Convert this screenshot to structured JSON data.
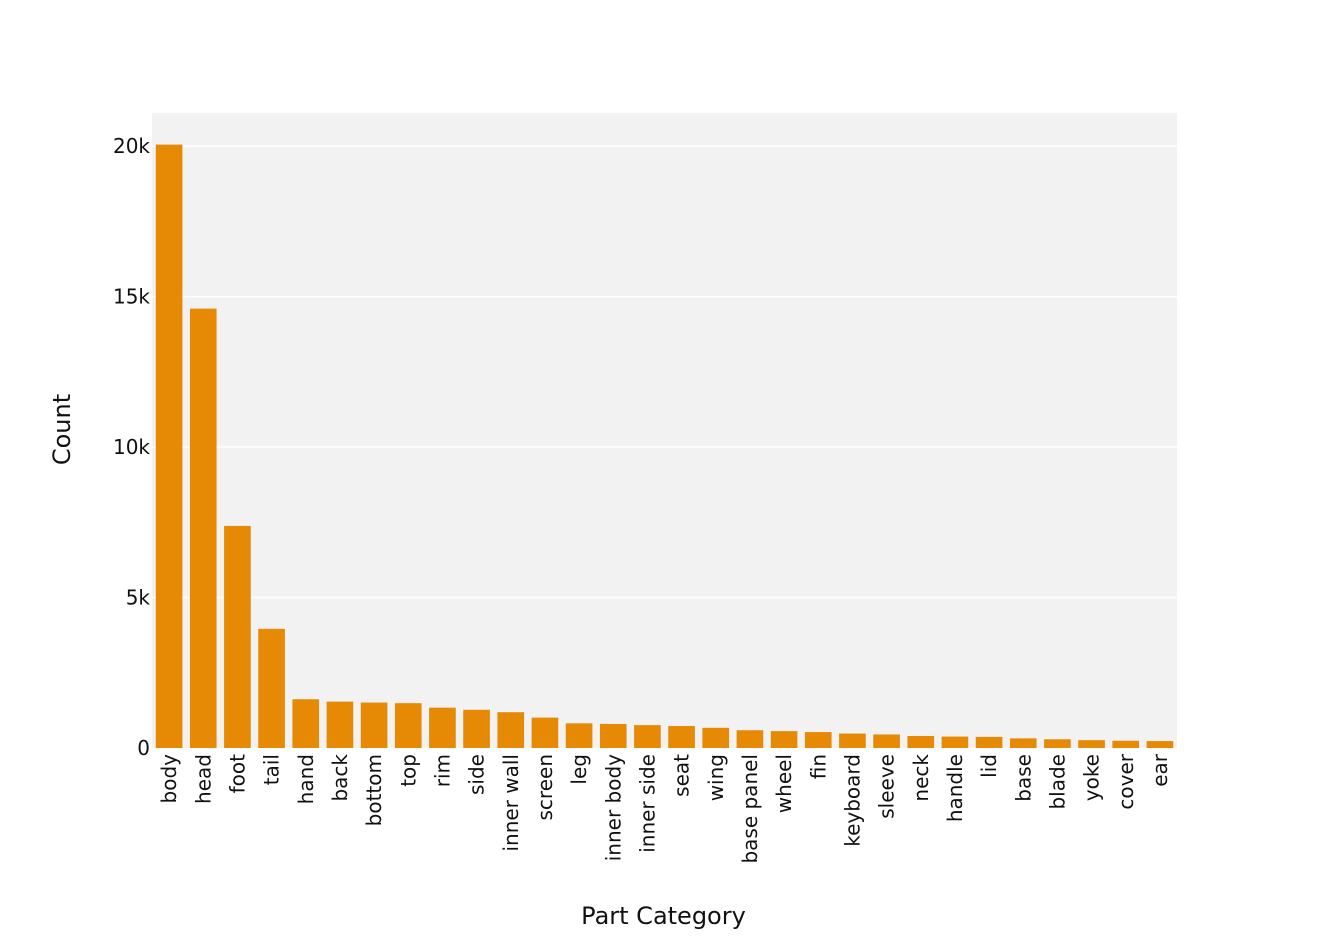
{
  "chart_data": {
    "type": "bar",
    "categories": [
      "body",
      "head",
      "foot",
      "tail",
      "hand",
      "back",
      "bottom",
      "top",
      "rim",
      "side",
      "inner wall",
      "screen",
      "leg",
      "inner body",
      "inner side",
      "seat",
      "wing",
      "base panel",
      "wheel",
      "fin",
      "keyboard",
      "sleeve",
      "neck",
      "handle",
      "lid",
      "base",
      "blade",
      "yoke",
      "cover",
      "ear"
    ],
    "values": [
      20050,
      14600,
      7380,
      3960,
      1620,
      1540,
      1510,
      1490,
      1340,
      1270,
      1190,
      1010,
      820,
      800,
      760,
      730,
      670,
      590,
      560,
      530,
      480,
      450,
      400,
      380,
      370,
      320,
      290,
      260,
      240,
      230
    ],
    "title": "",
    "xlabel": "Part Category",
    "ylabel": "Count",
    "ylim": [
      0,
      21100
    ],
    "yticks": [
      0,
      5000,
      10000,
      15000,
      20000
    ],
    "ytick_labels": [
      "0",
      "5k",
      "10k",
      "15k",
      "20k"
    ],
    "grid": true,
    "bar_color": "#e68a05",
    "plot_background": "#f2f2f2",
    "grid_color": "#ffffff"
  }
}
